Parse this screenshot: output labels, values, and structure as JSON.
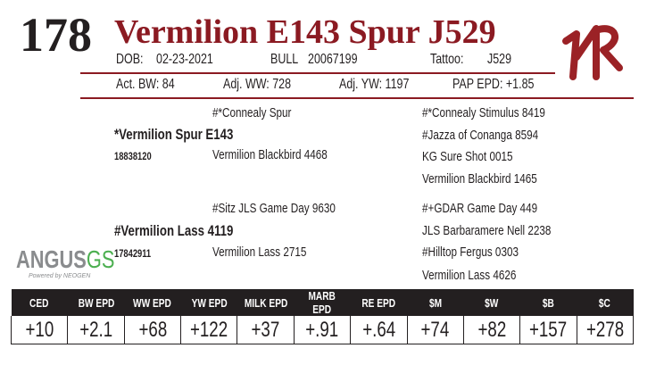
{
  "lot_number": "178",
  "name": "Vermilion E143 Spur J529",
  "accent_color": "#8b1a22",
  "info": {
    "dob_label": "DOB:",
    "dob": "02-23-2021",
    "sex": "BULL",
    "registration": "20067199",
    "tattoo_label": "Tattoo:",
    "tattoo": "J529"
  },
  "performance": {
    "bw": "Act. BW: 84",
    "ww": "Adj. WW: 728",
    "yw": "Adj. YW: 1197",
    "pap": "PAP EPD: +1.85"
  },
  "pedigree": {
    "sire": "*Vermilion Spur E143",
    "sire_reg": "18838120",
    "sire_sire": "#*Connealy Spur",
    "sire_dam": "Vermilion Blackbird 4468",
    "sire_gg": [
      "#*Connealy Stimulus 8419",
      "#Jazza of Conanga 8594",
      "KG Sure Shot 0015",
      "Vermilion Blackbird 1465"
    ],
    "dam": "#Vermilion Lass 4119",
    "dam_reg": "17842911",
    "dam_sire": "#Sitz JLS Game Day 9630",
    "dam_dam": "Vermilion Lass 2715",
    "dam_gg": [
      "#+GDAR Game Day 449",
      "JLS Barbaramere Nell 2238",
      "#Hilltop Fergus 0303",
      "Vermilion Lass 4626"
    ]
  },
  "logo": {
    "text_a": "ANGUS",
    "text_b": "GS",
    "sub": "Powered by NEOGEN"
  },
  "brand": "VR",
  "epd_headers": [
    "CED",
    "BW EPD",
    "WW EPD",
    "YW EPD",
    "MILK EPD",
    "MARB EPD",
    "RE EPD",
    "$M",
    "$W",
    "$B",
    "$C"
  ],
  "epd_values": [
    "+10",
    "+2.1",
    "+68",
    "+122",
    "+37",
    "+.91",
    "+.64",
    "+74",
    "+82",
    "+157",
    "+278"
  ]
}
